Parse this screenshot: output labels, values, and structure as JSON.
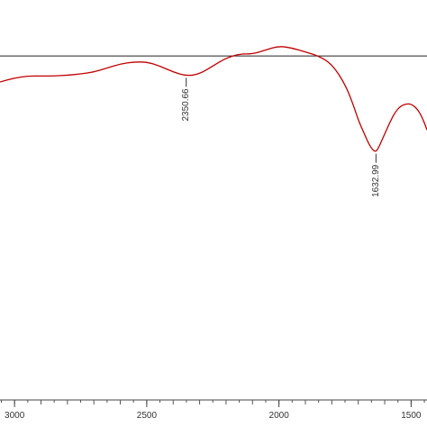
{
  "chart_data": {
    "type": "line",
    "title": "",
    "xlabel": "",
    "ylabel": "",
    "x_reversed": true,
    "xlim": [
      3055,
      1440
    ],
    "ylim": [
      0,
      100
    ],
    "grid": false,
    "baseline_y": 86,
    "x_tick_labels": [
      "3000",
      "2500",
      "2000",
      "1500"
    ],
    "x_tick_values": [
      3000,
      2500,
      2000,
      1500
    ],
    "series": [
      {
        "color": "#c00000",
        "x": [
          3055,
          3000,
          2950,
          2900,
          2850,
          2800,
          2750,
          2700,
          2650,
          2600,
          2550,
          2500,
          2450,
          2400,
          2350,
          2300,
          2250,
          2200,
          2150,
          2100,
          2050,
          2000,
          1950,
          1900,
          1850,
          1800,
          1750,
          1720,
          1700,
          1680,
          1660,
          1645,
          1632.99,
          1620,
          1600,
          1580,
          1560,
          1540,
          1520,
          1500,
          1480,
          1460,
          1440
        ],
        "y": [
          79.5,
          80.5,
          81,
          81,
          81,
          81.2,
          81.5,
          82,
          83,
          84,
          84.5,
          84.5,
          83.5,
          82,
          81,
          81.5,
          83.5,
          85.5,
          86.5,
          86.5,
          87.5,
          88.5,
          88,
          87,
          86,
          84,
          79,
          74,
          70,
          67,
          64,
          62.5,
          62,
          63.5,
          66.5,
          69.5,
          72,
          73.5,
          74,
          74,
          73,
          71,
          67.5
        ]
      }
    ],
    "annotations": [
      {
        "label": "2350.66",
        "x": 2350.66,
        "y": 81
      },
      {
        "label": "1632.99",
        "x": 1632.99,
        "y": 62
      }
    ]
  }
}
